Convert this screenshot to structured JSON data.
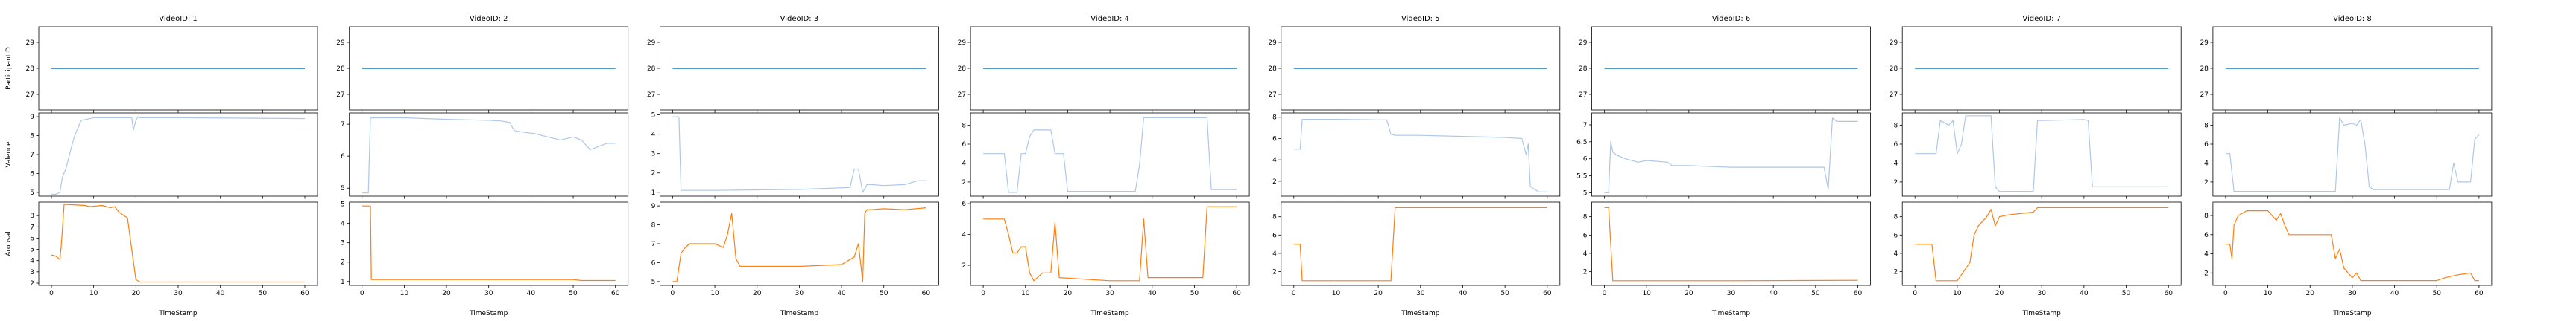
{
  "chart_data": {
    "type": "line",
    "xlabel": "TimeStamp",
    "xlim": [
      -3,
      63
    ],
    "xticks": [
      0,
      10,
      20,
      30,
      40,
      50,
      60
    ],
    "rows": [
      {
        "ylabel": "ParticipantID",
        "color": "#1f77b4",
        "lw": 1.4
      },
      {
        "ylabel": "Valence",
        "color": "#aec7e8",
        "lw": 1.2
      },
      {
        "ylabel": "Arousal",
        "color": "#ff7f0e",
        "lw": 1.2
      }
    ],
    "panels": [
      {
        "title": "VideoID: 1",
        "participant": {
          "ylim": [
            26.4,
            29.6
          ],
          "yticks": [
            27,
            28,
            29
          ],
          "x": [
            0,
            60
          ],
          "y": [
            28,
            28
          ]
        },
        "valence": {
          "ylim": [
            4.8,
            9.2
          ],
          "yticks": [
            5,
            6,
            7,
            8,
            9
          ],
          "x": [
            0,
            1,
            2,
            2.6,
            3.5,
            4.5,
            5.5,
            7,
            10,
            19,
            19.4,
            20,
            20.5,
            21,
            30,
            60
          ],
          "y": [
            4.9,
            4.9,
            5.0,
            5.8,
            6.3,
            7.2,
            8.0,
            8.8,
            8.95,
            8.95,
            8.3,
            8.8,
            9.0,
            8.95,
            8.95,
            8.9
          ]
        },
        "arousal": {
          "ylim": [
            1.8,
            9.2
          ],
          "yticks": [
            2,
            3,
            4,
            5,
            6,
            7,
            8
          ],
          "x": [
            0,
            1,
            2,
            2.3,
            3,
            8,
            9,
            12,
            14,
            15,
            16,
            18,
            19,
            20,
            21,
            40,
            60
          ],
          "y": [
            4.5,
            4.4,
            4.1,
            5.2,
            9.0,
            8.9,
            8.8,
            8.9,
            8.7,
            8.8,
            8.3,
            7.8,
            5.0,
            2.3,
            2.1,
            2.1,
            2.1
          ]
        }
      },
      {
        "title": "VideoID: 2",
        "participant": {
          "ylim": [
            26.4,
            29.6
          ],
          "yticks": [
            27,
            28,
            29
          ],
          "x": [
            0,
            60
          ],
          "y": [
            28,
            28
          ]
        },
        "valence": {
          "ylim": [
            4.75,
            7.35
          ],
          "yticks": [
            5,
            6,
            7
          ],
          "x": [
            0,
            1.5,
            2,
            10,
            20,
            30,
            33,
            35,
            36,
            38,
            41,
            44,
            47,
            50,
            52,
            54,
            56,
            58,
            60
          ],
          "y": [
            4.85,
            4.85,
            7.2,
            7.2,
            7.15,
            7.12,
            7.1,
            7.05,
            6.8,
            6.75,
            6.7,
            6.6,
            6.5,
            6.6,
            6.5,
            6.2,
            6.3,
            6.4,
            6.4
          ]
        },
        "arousal": {
          "ylim": [
            0.8,
            5.1
          ],
          "yticks": [
            1,
            2,
            3,
            4,
            5
          ],
          "x": [
            0,
            1,
            2,
            2.2,
            20,
            50,
            52,
            60
          ],
          "y": [
            4.9,
            4.9,
            4.9,
            1.1,
            1.1,
            1.1,
            1.05,
            1.05
          ]
        }
      },
      {
        "title": "VideoID: 3",
        "participant": {
          "ylim": [
            26.4,
            29.6
          ],
          "yticks": [
            27,
            28,
            29
          ],
          "x": [
            0,
            60
          ],
          "y": [
            28,
            28
          ]
        },
        "valence": {
          "ylim": [
            0.8,
            5.1
          ],
          "yticks": [
            1,
            2,
            3,
            4,
            5
          ],
          "x": [
            0,
            1.5,
            2,
            10,
            30,
            42,
            43,
            44,
            44.5,
            45,
            46,
            47,
            50,
            55,
            58,
            60
          ],
          "y": [
            4.9,
            4.9,
            1.1,
            1.1,
            1.15,
            1.25,
            2.2,
            2.2,
            1.6,
            1.0,
            1.4,
            1.4,
            1.35,
            1.4,
            1.6,
            1.6
          ]
        },
        "arousal": {
          "ylim": [
            4.8,
            9.2
          ],
          "yticks": [
            5,
            6,
            7,
            8,
            9
          ],
          "x": [
            0,
            1,
            2,
            3,
            4,
            10,
            12,
            13,
            14,
            15,
            15.5,
            16,
            20,
            30,
            40,
            43,
            44,
            45,
            45.5,
            46,
            47,
            50,
            55,
            60
          ],
          "y": [
            5.0,
            5.0,
            6.5,
            6.8,
            7.0,
            7.0,
            6.8,
            7.5,
            8.6,
            6.2,
            6.0,
            5.8,
            5.8,
            5.8,
            5.9,
            6.3,
            7.0,
            5.0,
            8.6,
            8.8,
            8.8,
            8.85,
            8.8,
            8.9
          ]
        }
      },
      {
        "title": "VideoID: 4",
        "participant": {
          "ylim": [
            26.4,
            29.6
          ],
          "yticks": [
            27,
            28,
            29
          ],
          "x": [
            0,
            60
          ],
          "y": [
            28,
            28
          ]
        },
        "valence": {
          "ylim": [
            0.5,
            9.3
          ],
          "yticks": [
            2,
            4,
            6,
            8
          ],
          "x": [
            0,
            5,
            6,
            8,
            9,
            10,
            11,
            12,
            13,
            16,
            17,
            19,
            20,
            30,
            36,
            37,
            38,
            39,
            40,
            50,
            53,
            54,
            60
          ],
          "y": [
            5.0,
            5.0,
            0.9,
            0.9,
            5.0,
            5.0,
            6.8,
            7.5,
            7.5,
            7.5,
            5.0,
            5.0,
            1.0,
            1.0,
            1.0,
            3.8,
            8.8,
            8.8,
            8.8,
            8.8,
            8.8,
            1.2,
            1.2
          ]
        },
        "arousal": {
          "ylim": [
            0.7,
            6.1
          ],
          "yticks": [
            2,
            4,
            6
          ],
          "x": [
            0,
            5,
            6,
            7,
            8,
            9,
            10,
            11,
            12,
            14,
            16,
            17,
            18,
            30,
            37,
            38,
            39,
            40,
            50,
            52,
            53,
            60
          ],
          "y": [
            5.0,
            5.0,
            4.0,
            2.8,
            2.8,
            3.2,
            3.2,
            1.5,
            1.0,
            1.5,
            1.5,
            4.8,
            1.2,
            1.0,
            1.0,
            5.0,
            1.2,
            1.2,
            1.2,
            1.2,
            5.8,
            5.8
          ]
        }
      },
      {
        "title": "VideoID: 5",
        "participant": {
          "ylim": [
            26.4,
            29.6
          ],
          "yticks": [
            27,
            28,
            29
          ],
          "x": [
            0,
            60
          ],
          "y": [
            28,
            28
          ]
        },
        "valence": {
          "ylim": [
            0.6,
            8.4
          ],
          "yticks": [
            2,
            4,
            6,
            8
          ],
          "x": [
            0,
            1,
            1.5,
            2,
            10,
            20,
            22,
            23,
            24,
            30,
            40,
            50,
            54,
            55,
            55.5,
            56,
            58,
            60
          ],
          "y": [
            5.0,
            5.0,
            5.0,
            7.8,
            7.8,
            7.75,
            7.75,
            6.4,
            6.3,
            6.3,
            6.2,
            6.1,
            6.0,
            4.5,
            5.5,
            1.5,
            1.0,
            1.0
          ]
        },
        "arousal": {
          "ylim": [
            0.5,
            9.6
          ],
          "yticks": [
            2,
            4,
            6,
            8
          ],
          "x": [
            0,
            1.5,
            2,
            23,
            24,
            60
          ],
          "y": [
            5.0,
            5.0,
            1.0,
            1.0,
            9.0,
            9.0
          ]
        }
      },
      {
        "title": "VideoID: 6",
        "participant": {
          "ylim": [
            26.4,
            29.6
          ],
          "yticks": [
            27,
            28,
            29
          ],
          "x": [
            0,
            60
          ],
          "y": [
            28,
            28
          ]
        },
        "valence": {
          "ylim": [
            4.9,
            7.35
          ],
          "yticks": [
            5.0,
            5.5,
            6.0,
            6.5,
            7.0
          ],
          "x": [
            0,
            1,
            1.5,
            2,
            3,
            5,
            8,
            10,
            15,
            16,
            20,
            30,
            40,
            50,
            52,
            53,
            54,
            55,
            60
          ],
          "y": [
            5.0,
            5.0,
            6.5,
            6.2,
            6.1,
            6.0,
            5.9,
            5.95,
            5.9,
            5.8,
            5.8,
            5.75,
            5.75,
            5.75,
            5.75,
            5.1,
            7.2,
            7.1,
            7.1
          ]
        },
        "arousal": {
          "ylim": [
            0.5,
            9.6
          ],
          "yticks": [
            2,
            4,
            6,
            8
          ],
          "x": [
            0,
            1,
            2,
            10,
            30,
            60
          ],
          "y": [
            9.0,
            9.0,
            1.0,
            1.0,
            1.0,
            1.05
          ]
        }
      },
      {
        "title": "VideoID: 7",
        "participant": {
          "ylim": [
            26.4,
            29.6
          ],
          "yticks": [
            27,
            28,
            29
          ],
          "x": [
            0,
            60
          ],
          "y": [
            28,
            28
          ]
        },
        "valence": {
          "ylim": [
            0.5,
            9.3
          ],
          "yticks": [
            2,
            4,
            6,
            8
          ],
          "x": [
            0,
            4,
            5,
            6,
            8,
            9,
            10,
            11,
            12,
            14,
            15,
            18,
            19,
            20,
            28,
            29,
            30,
            40,
            41,
            42,
            50,
            60
          ],
          "y": [
            5.0,
            5.0,
            5.0,
            8.5,
            8.0,
            8.5,
            5.0,
            6.0,
            9.0,
            9.0,
            9.0,
            9.0,
            1.5,
            1.0,
            1.0,
            8.5,
            8.5,
            8.6,
            8.5,
            1.5,
            1.5,
            1.5
          ]
        },
        "arousal": {
          "ylim": [
            0.5,
            9.6
          ],
          "yticks": [
            2,
            4,
            6,
            8
          ],
          "x": [
            0,
            4,
            5,
            6,
            9,
            10,
            13,
            14,
            15,
            16,
            17,
            18,
            19,
            20,
            22,
            28,
            29,
            30,
            40,
            41,
            42,
            50,
            60
          ],
          "y": [
            5.0,
            5.0,
            1.0,
            1.0,
            1.0,
            1.0,
            3.0,
            6.0,
            7.0,
            7.5,
            8.0,
            8.8,
            7.0,
            8.0,
            8.2,
            8.5,
            9.0,
            9.0,
            9.0,
            9.0,
            9.0,
            9.0,
            9.0
          ]
        }
      },
      {
        "title": "VideoID: 8",
        "participant": {
          "ylim": [
            26.4,
            29.6
          ],
          "yticks": [
            27,
            28,
            29
          ],
          "x": [
            0,
            60
          ],
          "y": [
            28,
            28
          ]
        },
        "valence": {
          "ylim": [
            0.5,
            9.3
          ],
          "yticks": [
            2,
            4,
            6,
            8
          ],
          "x": [
            0,
            1,
            2,
            3,
            10,
            20,
            26,
            27,
            28,
            30,
            31,
            32,
            33,
            34,
            35,
            40,
            50,
            53,
            54,
            55,
            58,
            59,
            60
          ],
          "y": [
            5.0,
            5.0,
            1.0,
            1.0,
            1.0,
            1.0,
            1.0,
            8.8,
            8.0,
            8.2,
            8.0,
            8.6,
            6.0,
            1.5,
            1.2,
            1.2,
            1.2,
            1.2,
            4.0,
            2.0,
            2.0,
            6.5,
            7.0
          ]
        },
        "arousal": {
          "ylim": [
            0.7,
            9.4
          ],
          "yticks": [
            2,
            4,
            6,
            8
          ],
          "x": [
            0,
            1,
            1.5,
            2,
            3,
            5,
            10,
            12,
            13,
            14,
            15,
            20,
            25,
            26,
            27,
            28,
            30,
            31,
            32,
            40,
            50,
            52,
            55,
            58,
            59,
            60
          ],
          "y": [
            5.0,
            5.0,
            3.5,
            7.0,
            8.0,
            8.5,
            8.5,
            7.5,
            8.2,
            7.0,
            6.0,
            6.0,
            6.0,
            3.5,
            4.5,
            2.5,
            1.5,
            2.0,
            1.2,
            1.2,
            1.2,
            1.5,
            1.8,
            2.0,
            1.2,
            1.2
          ]
        }
      }
    ]
  }
}
